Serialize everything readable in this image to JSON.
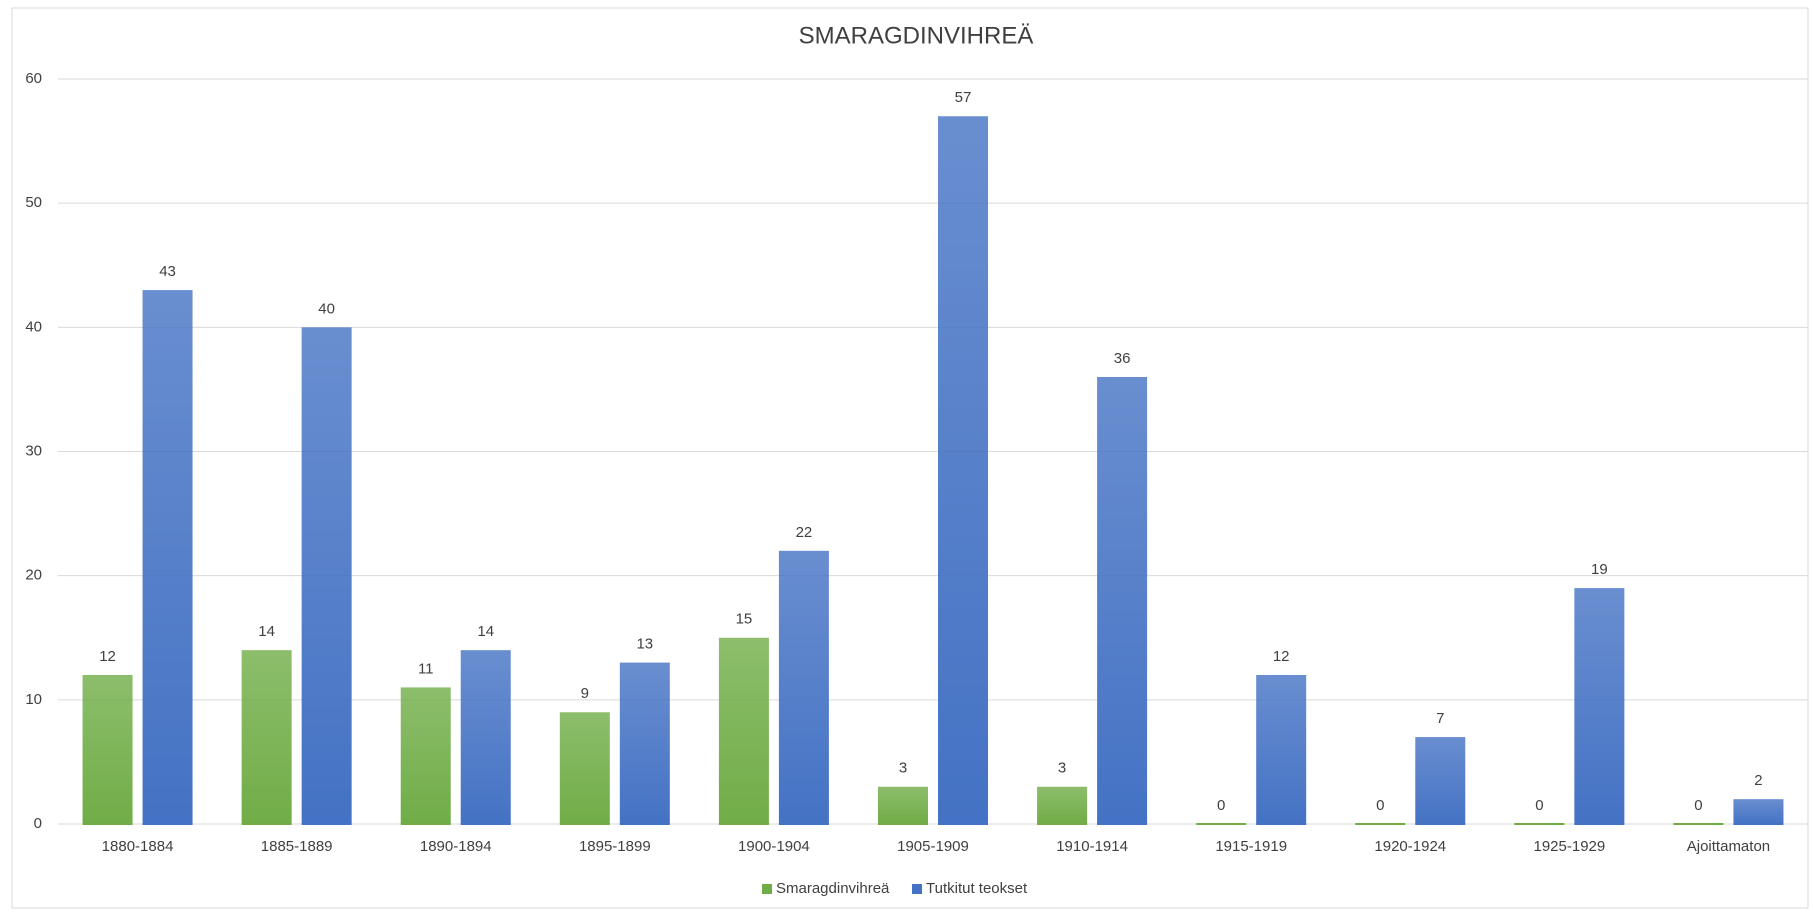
{
  "chart_data": {
    "type": "bar",
    "title": "SMARAGDINVIHREÄ",
    "categories": [
      "1880-1884",
      "1885-1889",
      "1890-1894",
      "1895-1899",
      "1900-1904",
      "1905-1909",
      "1910-1914",
      "1915-1919",
      "1920-1924",
      "1925-1929",
      "Ajoittamaton"
    ],
    "series": [
      {
        "name": "Smaragdinvihreä",
        "color": "#70ad47",
        "values": [
          12,
          14,
          11,
          9,
          15,
          3,
          3,
          0,
          0,
          0,
          0
        ]
      },
      {
        "name": "Tutkitut teokset",
        "color": "#4472c4",
        "values": [
          43,
          40,
          14,
          13,
          22,
          57,
          36,
          12,
          7,
          19,
          2
        ]
      }
    ],
    "ylim": [
      0,
      60
    ],
    "yticks": [
      0,
      10,
      20,
      30,
      40,
      50,
      60
    ],
    "grid": true,
    "legend": "bottom"
  }
}
